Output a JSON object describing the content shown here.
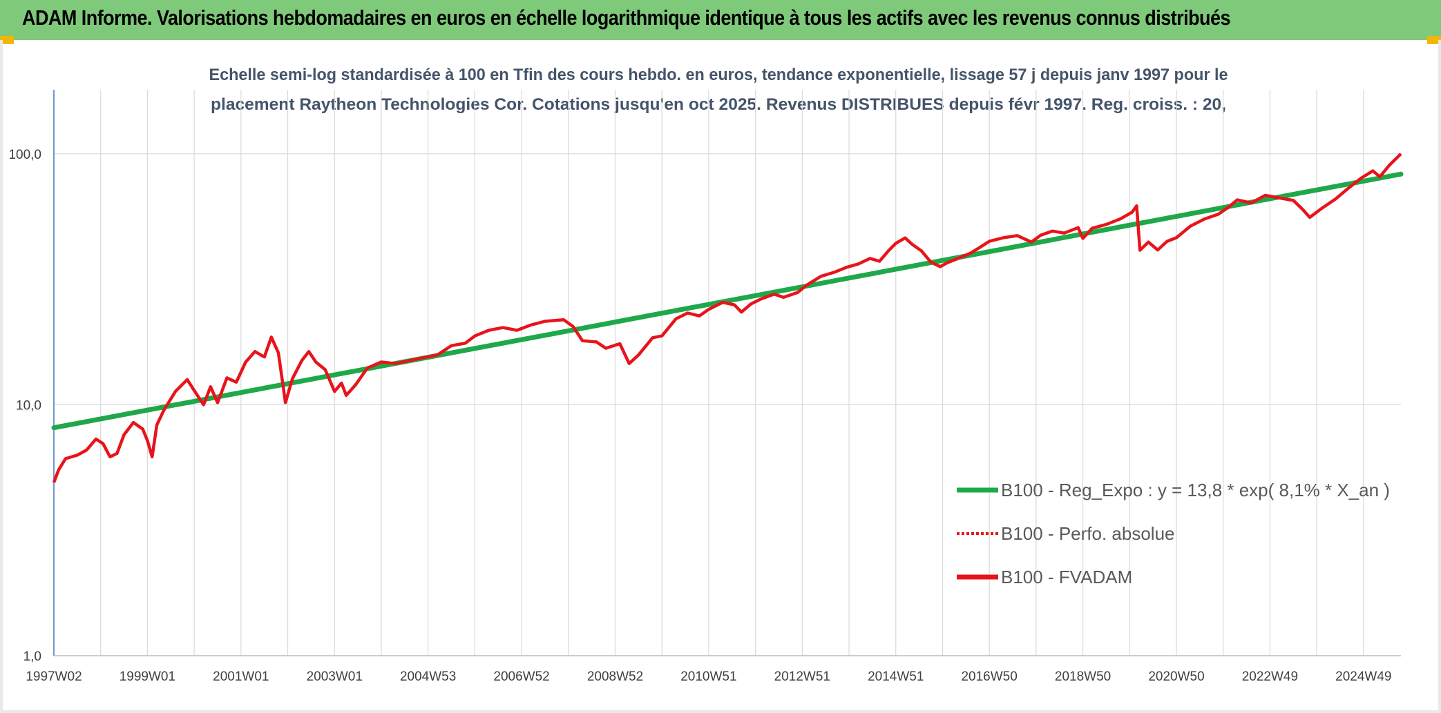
{
  "header": {
    "title": "ADAM Informe. Valorisations hebdomadaires en euros en échelle logarithmique identique à tous les actifs avec les revenus connus distribués"
  },
  "colors": {
    "banner": "#7fc97a",
    "regression": "#1fa84a",
    "fvadam": "#e8141b",
    "perfo": "#e8141b",
    "gridline": "#d9d9d9",
    "title_text": "#44546a",
    "corner_accent": "#f2b705"
  },
  "chart_data": {
    "type": "line",
    "title_lines": [
      "Echelle semi-log standardisée à 100 en Tfin des cours hebdo. en euros, tendance exponentielle, lissage 57 j depuis janv 1997 pour le",
      "placement Raytheon Technologies Cor. Cotations jusqu'en oct 2025. Revenus DISTRIBUES depuis févr 1997. Reg. croiss. : 20,"
    ],
    "y_scale": "log",
    "ylim": [
      1,
      180
    ],
    "y_ticks": [
      {
        "value": 1,
        "label": "1,0"
      },
      {
        "value": 10,
        "label": "10,0"
      },
      {
        "value": 100,
        "label": "100,0"
      }
    ],
    "xlim": [
      1997.0,
      2025.8
    ],
    "x_ticks": [
      {
        "x": 1997.0,
        "label": "1997W02"
      },
      {
        "x": 1999.0,
        "label": "1999W01"
      },
      {
        "x": 2001.0,
        "label": "2001W01"
      },
      {
        "x": 2003.0,
        "label": "2003W01"
      },
      {
        "x": 2005.0,
        "label": "2004W53"
      },
      {
        "x": 2007.0,
        "label": "2006W52"
      },
      {
        "x": 2009.0,
        "label": "2008W52"
      },
      {
        "x": 2011.0,
        "label": "2010W51"
      },
      {
        "x": 2013.0,
        "label": "2012W51"
      },
      {
        "x": 2015.0,
        "label": "2014W51"
      },
      {
        "x": 2017.0,
        "label": "2016W50"
      },
      {
        "x": 2019.0,
        "label": "2018W50"
      },
      {
        "x": 2021.0,
        "label": "2020W50"
      },
      {
        "x": 2023.0,
        "label": "2022W49"
      },
      {
        "x": 2025.0,
        "label": "2024W49"
      }
    ],
    "grid": "both",
    "legend_position": "bottom-right",
    "legend": [
      {
        "label": "B100 - Reg_Expo : y = 13,8 * exp( 8,1% *  X_an )",
        "style": "solid-thick",
        "series": "regression"
      },
      {
        "label": "B100 - Perfo. absolue",
        "style": "dotted",
        "series": "perfo"
      },
      {
        "label": "B100 - FVADAM",
        "style": "solid-thick",
        "series": "fvadam"
      }
    ],
    "series": [
      {
        "id": "regression",
        "points": [
          [
            1997.0,
            8.1
          ],
          [
            2025.8,
            83.0
          ]
        ]
      },
      {
        "id": "fvadam",
        "points": [
          [
            1997.0,
            4.9
          ],
          [
            1997.1,
            5.5
          ],
          [
            1997.25,
            6.1
          ],
          [
            1997.5,
            6.3
          ],
          [
            1997.7,
            6.6
          ],
          [
            1997.9,
            7.3
          ],
          [
            1998.05,
            7.0
          ],
          [
            1998.2,
            6.2
          ],
          [
            1998.35,
            6.4
          ],
          [
            1998.5,
            7.6
          ],
          [
            1998.7,
            8.5
          ],
          [
            1998.9,
            8.0
          ],
          [
            1999.0,
            7.2
          ],
          [
            1999.1,
            6.2
          ],
          [
            1999.2,
            8.3
          ],
          [
            1999.35,
            9.5
          ],
          [
            1999.6,
            11.3
          ],
          [
            1999.85,
            12.6
          ],
          [
            2000.0,
            11.4
          ],
          [
            2000.2,
            10.0
          ],
          [
            2000.35,
            11.8
          ],
          [
            2000.5,
            10.2
          ],
          [
            2000.7,
            12.8
          ],
          [
            2000.9,
            12.3
          ],
          [
            2001.1,
            14.8
          ],
          [
            2001.3,
            16.3
          ],
          [
            2001.5,
            15.5
          ],
          [
            2001.65,
            18.6
          ],
          [
            2001.8,
            16.1
          ],
          [
            2001.95,
            10.2
          ],
          [
            2002.1,
            12.7
          ],
          [
            2002.3,
            15.0
          ],
          [
            2002.45,
            16.3
          ],
          [
            2002.6,
            14.8
          ],
          [
            2002.8,
            13.8
          ],
          [
            2003.0,
            11.3
          ],
          [
            2003.15,
            12.2
          ],
          [
            2003.25,
            10.9
          ],
          [
            2003.45,
            12.0
          ],
          [
            2003.7,
            14.0
          ],
          [
            2004.0,
            14.8
          ],
          [
            2004.3,
            14.6
          ],
          [
            2004.6,
            15.0
          ],
          [
            2004.9,
            15.4
          ],
          [
            2005.2,
            15.8
          ],
          [
            2005.5,
            17.2
          ],
          [
            2005.8,
            17.6
          ],
          [
            2006.0,
            18.8
          ],
          [
            2006.3,
            19.8
          ],
          [
            2006.6,
            20.3
          ],
          [
            2006.9,
            19.8
          ],
          [
            2007.2,
            20.8
          ],
          [
            2007.5,
            21.5
          ],
          [
            2007.9,
            21.8
          ],
          [
            2008.1,
            20.5
          ],
          [
            2008.3,
            18.0
          ],
          [
            2008.6,
            17.8
          ],
          [
            2008.8,
            16.8
          ],
          [
            2009.1,
            17.5
          ],
          [
            2009.3,
            14.6
          ],
          [
            2009.5,
            15.8
          ],
          [
            2009.8,
            18.5
          ],
          [
            2010.0,
            18.8
          ],
          [
            2010.3,
            22.0
          ],
          [
            2010.55,
            23.2
          ],
          [
            2010.8,
            22.6
          ],
          [
            2011.0,
            24.0
          ],
          [
            2011.3,
            25.6
          ],
          [
            2011.55,
            25.0
          ],
          [
            2011.7,
            23.4
          ],
          [
            2011.9,
            25.2
          ],
          [
            2012.1,
            26.3
          ],
          [
            2012.4,
            27.6
          ],
          [
            2012.6,
            26.8
          ],
          [
            2012.9,
            28.0
          ],
          [
            2013.1,
            30.0
          ],
          [
            2013.4,
            32.5
          ],
          [
            2013.7,
            33.8
          ],
          [
            2013.95,
            35.3
          ],
          [
            2014.2,
            36.4
          ],
          [
            2014.45,
            38.3
          ],
          [
            2014.65,
            37.3
          ],
          [
            2014.85,
            41.2
          ],
          [
            2015.0,
            44.0
          ],
          [
            2015.2,
            46.2
          ],
          [
            2015.35,
            43.6
          ],
          [
            2015.55,
            41.0
          ],
          [
            2015.75,
            37.0
          ],
          [
            2015.95,
            35.5
          ],
          [
            2016.1,
            36.8
          ],
          [
            2016.35,
            38.4
          ],
          [
            2016.6,
            40.2
          ],
          [
            2016.8,
            42.4
          ],
          [
            2017.0,
            44.8
          ],
          [
            2017.3,
            46.3
          ],
          [
            2017.6,
            47.2
          ],
          [
            2017.9,
            44.5
          ],
          [
            2018.1,
            47.4
          ],
          [
            2018.35,
            49.2
          ],
          [
            2018.6,
            48.3
          ],
          [
            2018.9,
            50.8
          ],
          [
            2019.0,
            46.0
          ],
          [
            2019.2,
            50.5
          ],
          [
            2019.5,
            52.3
          ],
          [
            2019.8,
            55.0
          ],
          [
            2020.05,
            58.5
          ],
          [
            2020.15,
            62.0
          ],
          [
            2020.22,
            41.3
          ],
          [
            2020.4,
            44.5
          ],
          [
            2020.6,
            41.4
          ],
          [
            2020.8,
            44.8
          ],
          [
            2021.0,
            46.3
          ],
          [
            2021.3,
            51.5
          ],
          [
            2021.6,
            55.0
          ],
          [
            2021.9,
            57.5
          ],
          [
            2022.1,
            61.0
          ],
          [
            2022.3,
            65.5
          ],
          [
            2022.6,
            63.7
          ],
          [
            2022.9,
            68.3
          ],
          [
            2023.2,
            66.7
          ],
          [
            2023.5,
            65.2
          ],
          [
            2023.7,
            60.0
          ],
          [
            2023.85,
            55.8
          ],
          [
            2024.1,
            60.5
          ],
          [
            2024.4,
            66.0
          ],
          [
            2024.7,
            73.5
          ],
          [
            2024.95,
            80.0
          ],
          [
            2025.2,
            85.5
          ],
          [
            2025.35,
            81.0
          ],
          [
            2025.55,
            90.0
          ],
          [
            2025.8,
            100.0
          ]
        ]
      }
    ]
  }
}
